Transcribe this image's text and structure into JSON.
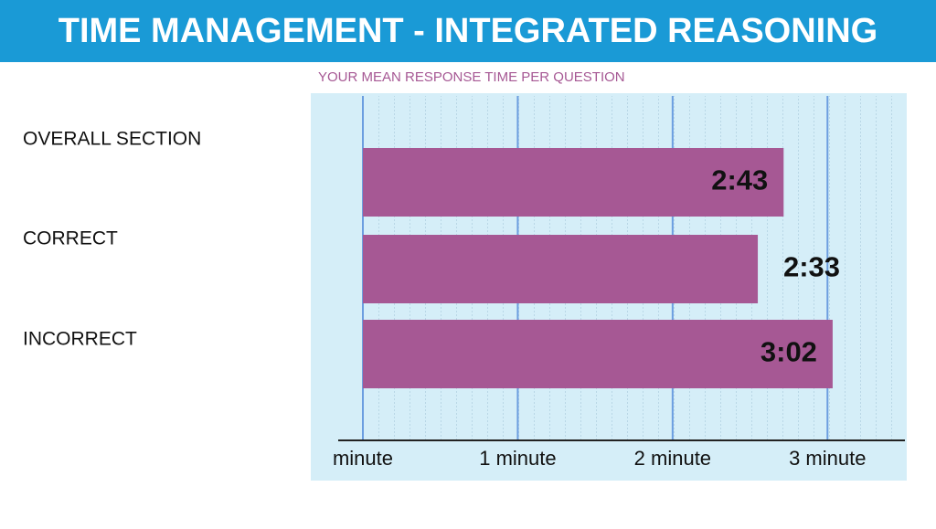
{
  "chart_data": {
    "type": "bar",
    "orientation": "horizontal",
    "title": "TIME MANAGEMENT - INTEGRATED REASONING",
    "subtitle": "YOUR MEAN RESPONSE TIME PER QUESTION",
    "categories": [
      "OVERALL SECTION",
      "CORRECT",
      "INCORRECT"
    ],
    "values": [
      2.7167,
      2.55,
      3.0333
    ],
    "value_labels": [
      "2:43",
      "2:33",
      "3:02"
    ],
    "color": "#a65894",
    "xlim": [
      0,
      3.5
    ],
    "xticks": [
      {
        "value": 0,
        "label": "minute"
      },
      {
        "value": 1,
        "label": "1 minute"
      },
      {
        "value": 2,
        "label": "2 minute"
      },
      {
        "value": 3,
        "label": "3 minute"
      }
    ],
    "grid": true
  }
}
